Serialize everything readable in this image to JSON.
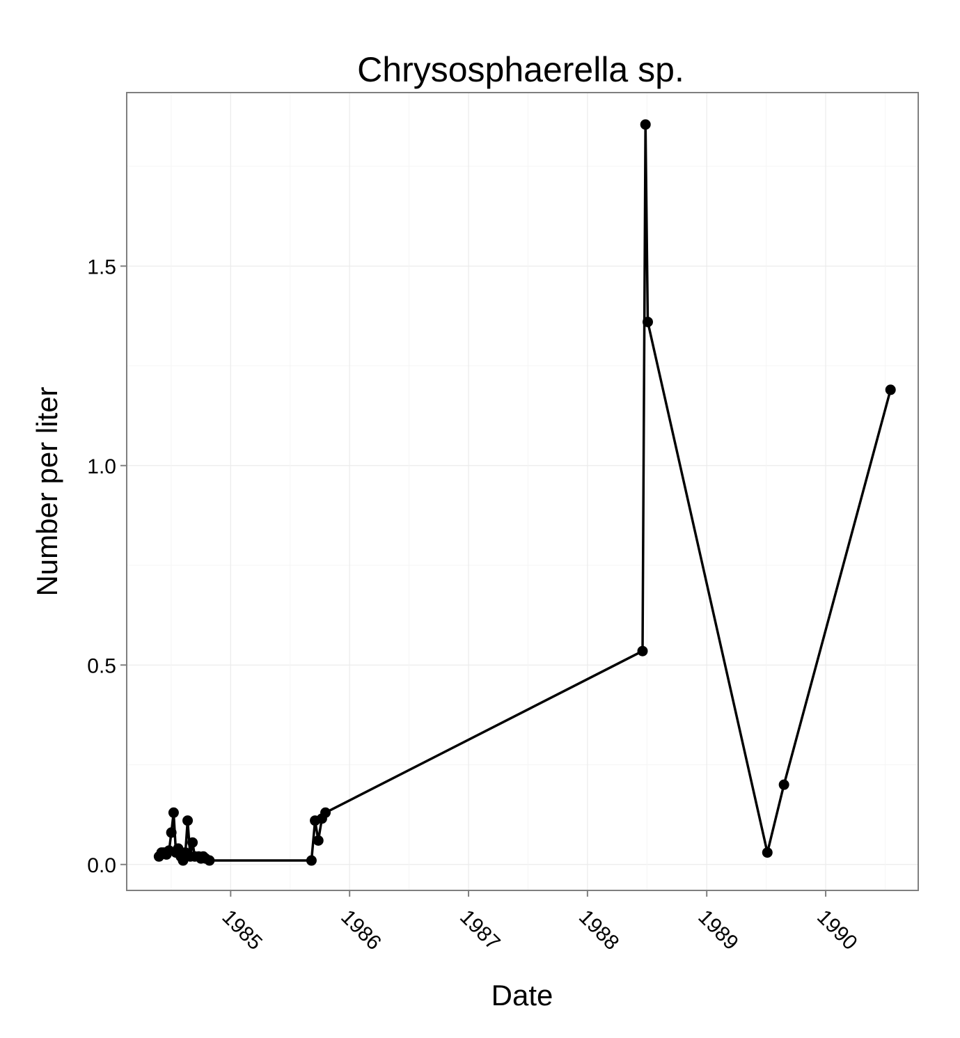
{
  "chart_data": {
    "type": "line",
    "title": "Chrysosphaerella sp.",
    "xlabel": "Date",
    "ylabel": "Number per liter",
    "x_scale": "date",
    "xlim": [
      "1984-02-17",
      "1990-10-12"
    ],
    "ylim": [
      -0.065,
      1.935
    ],
    "x_ticks": [
      "1985",
      "1986",
      "1987",
      "1988",
      "1989",
      "1990"
    ],
    "x_tick_dates": [
      "1985-01-01",
      "1986-01-01",
      "1987-01-01",
      "1988-01-01",
      "1989-01-01",
      "1990-01-01"
    ],
    "y_ticks": [
      0.0,
      0.5,
      1.0,
      1.5
    ],
    "y_tick_labels": [
      "0.0",
      "0.5",
      "1.0",
      "1.5"
    ],
    "grid": true,
    "series": [
      {
        "x": [
          "1984-05-26",
          "1984-06-03",
          "1984-06-10",
          "1984-06-18",
          "1984-06-26",
          "1984-07-03",
          "1984-07-10",
          "1984-07-17",
          "1984-07-24",
          "1984-08-01",
          "1984-08-08",
          "1984-08-15",
          "1984-08-22",
          "1984-08-30",
          "1984-09-06",
          "1984-09-13",
          "1984-09-25",
          "1984-10-02",
          "1984-10-09",
          "1984-10-16",
          "1984-10-28",
          "1985-09-06",
          "1985-09-17",
          "1985-09-27",
          "1985-10-08",
          "1985-10-19",
          "1988-06-18",
          "1988-06-27",
          "1988-07-04",
          "1989-07-06",
          "1989-08-26",
          "1990-07-19"
        ],
        "y": [
          0.02,
          0.03,
          0.03,
          0.025,
          0.035,
          0.08,
          0.13,
          0.03,
          0.04,
          0.02,
          0.01,
          0.03,
          0.11,
          0.02,
          0.055,
          0.02,
          0.02,
          0.015,
          0.02,
          0.015,
          0.01,
          0.01,
          0.11,
          0.06,
          0.115,
          0.13,
          0.535,
          1.855,
          1.36,
          0.03,
          0.2,
          1.19
        ]
      }
    ]
  }
}
